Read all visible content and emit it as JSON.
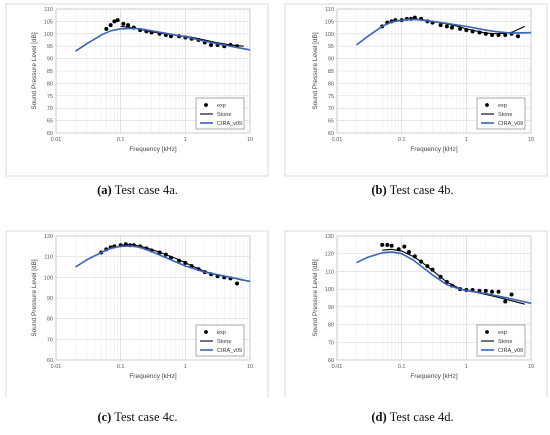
{
  "chart_data": [
    {
      "type": "line",
      "panel_label": "(a)",
      "caption": "Test case 4a.",
      "xlabel": "Frequency [kHz]",
      "ylabel": "Sound Pressure Level [dB]",
      "xscale": "log",
      "xlim": [
        0.01,
        10
      ],
      "ylim": [
        60,
        110
      ],
      "xticks": [
        "0.01",
        "0.1",
        "1",
        "10"
      ],
      "yticks": [
        "60",
        "65",
        "70",
        "75",
        "80",
        "85",
        "90",
        "95",
        "100",
        "105",
        "110"
      ],
      "grid": true,
      "legend_position": "bottom-right",
      "series": [
        {
          "name": "exp",
          "style": "markers",
          "color": "#000000",
          "x": [
            0.06,
            0.07,
            0.08,
            0.09,
            0.11,
            0.13,
            0.16,
            0.2,
            0.25,
            0.3,
            0.4,
            0.5,
            0.6,
            0.8,
            1.0,
            1.25,
            1.6,
            2.0,
            2.5,
            3.15,
            4.0,
            5.0,
            6.3
          ],
          "y": [
            102,
            103.5,
            105,
            105.5,
            104,
            103.5,
            102.5,
            101.5,
            101,
            100.5,
            100,
            99.5,
            99,
            99,
            98.5,
            98,
            97.5,
            96.5,
            95.5,
            95.5,
            95,
            95.5,
            95
          ]
        },
        {
          "name": "Stone",
          "style": "line",
          "color": "#000000",
          "x": [
            0.1,
            0.15,
            0.2,
            0.3,
            0.5,
            0.8,
            1.0,
            1.5,
            2.0,
            3.0,
            5.0,
            8.0
          ],
          "y": [
            103,
            102.5,
            101.8,
            100.8,
            100,
            99.3,
            99,
            98.2,
            97.5,
            96.5,
            95.5,
            95
          ]
        },
        {
          "name": "CIRA_v09",
          "style": "line",
          "color": "#3a63b8",
          "x": [
            0.02,
            0.03,
            0.05,
            0.07,
            0.1,
            0.15,
            0.2,
            0.3,
            0.5,
            1.0,
            2.0,
            5.0,
            10.0
          ],
          "y": [
            93,
            96,
            99.5,
            101.2,
            102,
            102.2,
            102,
            101.2,
            100.2,
            98.8,
            97,
            95,
            93.5
          ]
        }
      ]
    },
    {
      "type": "line",
      "panel_label": "(b)",
      "caption": "Test case 4b.",
      "xlabel": "Frequency [kHz]",
      "ylabel": "Sound Pressure Level [dB]",
      "xscale": "log",
      "xlim": [
        0.01,
        10
      ],
      "ylim": [
        60,
        110
      ],
      "xticks": [
        "0.01",
        "0.1",
        "1",
        "10"
      ],
      "yticks": [
        "60",
        "65",
        "70",
        "75",
        "80",
        "85",
        "90",
        "95",
        "100",
        "105",
        "110"
      ],
      "grid": true,
      "legend_position": "bottom-right",
      "series": [
        {
          "name": "exp",
          "style": "markers",
          "color": "#000000",
          "x": [
            0.05,
            0.06,
            0.07,
            0.08,
            0.1,
            0.12,
            0.14,
            0.16,
            0.2,
            0.25,
            0.3,
            0.4,
            0.5,
            0.6,
            0.8,
            1.0,
            1.25,
            1.6,
            2.0,
            2.5,
            3.15,
            4.0,
            5.0,
            6.3
          ],
          "y": [
            103,
            104.5,
            105,
            105.5,
            105.5,
            106,
            106,
            106.5,
            106,
            105,
            104.5,
            103.5,
            103,
            102.5,
            102,
            101.5,
            101,
            100.5,
            100,
            99.5,
            99.5,
            99.5,
            100,
            99
          ]
        },
        {
          "name": "Stone",
          "style": "line",
          "color": "#000000",
          "x": [
            0.1,
            0.15,
            0.2,
            0.3,
            0.5,
            0.8,
            1.0,
            1.5,
            2.0,
            3.0,
            5.0,
            8.0
          ],
          "y": [
            105.5,
            106,
            105.8,
            105,
            104,
            102.8,
            102,
            101,
            100.3,
            100,
            100.5,
            103
          ]
        },
        {
          "name": "CIRA_v09",
          "style": "line",
          "color": "#3a63b8",
          "x": [
            0.02,
            0.03,
            0.05,
            0.07,
            0.1,
            0.15,
            0.2,
            0.3,
            0.5,
            1.0,
            2.0,
            3.0,
            5.0,
            10.0
          ],
          "y": [
            95.5,
            99,
            103,
            104.8,
            105.5,
            105.8,
            105.6,
            105,
            104.2,
            103,
            101.5,
            100.8,
            100.3,
            100.5
          ]
        }
      ]
    },
    {
      "type": "line",
      "panel_label": "(c)",
      "caption": "Test case 4c.",
      "xlabel": "Frequency [kHz]",
      "ylabel": "Sound Pressure Level [dB]",
      "xscale": "log",
      "xlim": [
        0.01,
        10
      ],
      "ylim": [
        60,
        120
      ],
      "xticks": [
        "0.01",
        "0.1",
        "1",
        "10"
      ],
      "yticks": [
        "60",
        "70",
        "80",
        "90",
        "100",
        "110",
        "120"
      ],
      "grid": true,
      "legend_position": "bottom-right",
      "series": [
        {
          "name": "exp",
          "style": "markers",
          "color": "#000000",
          "x": [
            0.05,
            0.06,
            0.07,
            0.08,
            0.1,
            0.12,
            0.14,
            0.16,
            0.2,
            0.25,
            0.3,
            0.4,
            0.5,
            0.6,
            0.8,
            1.0,
            1.25,
            1.6,
            2.0,
            2.5,
            3.15,
            4.0,
            5.0,
            6.3
          ],
          "y": [
            112,
            113.5,
            114.5,
            115,
            115.5,
            116,
            115.5,
            115.5,
            115,
            114,
            113,
            112,
            111,
            109.5,
            108,
            107,
            105.5,
            104,
            102.5,
            101.5,
            100.5,
            100,
            99.5,
            97
          ]
        },
        {
          "name": "Stone",
          "style": "line",
          "color": "#000000",
          "x": [
            0.1,
            0.15,
            0.2,
            0.3,
            0.5,
            0.8,
            1.0,
            1.5,
            2.0,
            3.0,
            5.0,
            8.0
          ],
          "y": [
            115.5,
            115.8,
            115,
            113.5,
            111,
            108.5,
            107,
            104.5,
            102.8,
            101.5,
            100,
            98.5
          ]
        },
        {
          "name": "CIRA_v09",
          "style": "line",
          "color": "#3a63b8",
          "x": [
            0.02,
            0.03,
            0.05,
            0.07,
            0.1,
            0.15,
            0.2,
            0.3,
            0.5,
            1.0,
            2.0,
            5.0,
            10.0
          ],
          "y": [
            105,
            108.5,
            112,
            114,
            115,
            115.2,
            114.5,
            112.5,
            109.5,
            105.5,
            102.5,
            100,
            98
          ]
        }
      ]
    },
    {
      "type": "line",
      "panel_label": "(d)",
      "caption": "Test case 4d.",
      "xlabel": "Frequency [kHz]",
      "ylabel": "Sound Pressure Level [dB]",
      "xscale": "log",
      "xlim": [
        0.01,
        10
      ],
      "ylim": [
        60,
        130
      ],
      "xticks": [
        "0.01",
        "0.1",
        "1",
        "10"
      ],
      "yticks": [
        "60",
        "70",
        "80",
        "90",
        "100",
        "110",
        "120",
        "130"
      ],
      "grid": true,
      "legend_position": "bottom-right",
      "series": [
        {
          "name": "exp",
          "style": "markers",
          "color": "#000000",
          "x": [
            0.05,
            0.06,
            0.07,
            0.09,
            0.11,
            0.13,
            0.16,
            0.2,
            0.25,
            0.3,
            0.4,
            0.5,
            0.6,
            0.8,
            1.0,
            1.25,
            1.6,
            2.0,
            2.5,
            3.15,
            4.0,
            5.0
          ],
          "y": [
            125,
            125,
            124.5,
            122.5,
            124,
            121,
            118.5,
            115.5,
            113,
            111,
            107,
            104,
            102,
            100,
            99.5,
            99.5,
            99,
            99,
            98.5,
            98.5,
            93,
            97
          ]
        },
        {
          "name": "Stone",
          "style": "line",
          "color": "#000000",
          "x": [
            0.05,
            0.07,
            0.1,
            0.15,
            0.2,
            0.3,
            0.5,
            0.8,
            1.0,
            1.5,
            2.0,
            3.0,
            5.0,
            8.0
          ],
          "y": [
            122,
            122.5,
            121.5,
            118.5,
            115.5,
            110.5,
            104,
            100.2,
            99.2,
            98,
            97,
            95.5,
            93.5,
            91.5
          ]
        },
        {
          "name": "CIRA_v09",
          "style": "line",
          "color": "#3a63b8",
          "x": [
            0.02,
            0.03,
            0.05,
            0.07,
            0.1,
            0.15,
            0.2,
            0.3,
            0.5,
            0.8,
            1.0,
            2.0,
            5.0,
            10.0
          ],
          "y": [
            115,
            118,
            120.5,
            121,
            120,
            116.5,
            113,
            108,
            102.5,
            100,
            99.2,
            97.5,
            94.5,
            92
          ]
        }
      ]
    }
  ]
}
